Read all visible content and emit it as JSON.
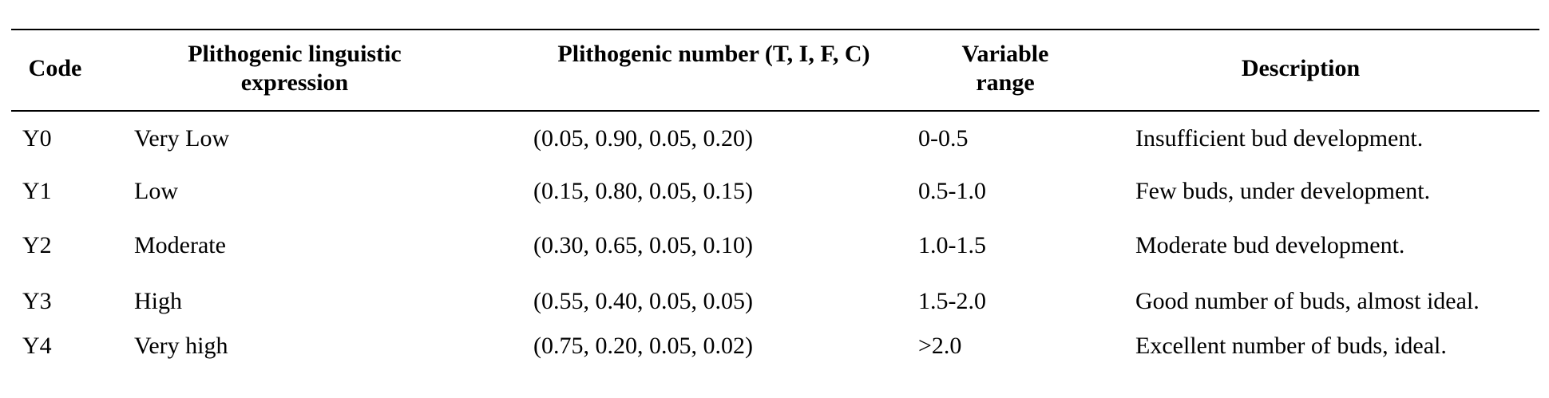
{
  "table": {
    "headers": {
      "code": "Code",
      "expression": "Plithogenic linguistic expression",
      "number": "Plithogenic number (T, I, F, C)",
      "range": "Variable range",
      "description": "Description"
    },
    "rows": [
      {
        "code": "Y0",
        "expression": "Very Low",
        "number": "(0.05, 0.90, 0.05, 0.20)",
        "range": "0-0.5",
        "description": "Insufficient bud development."
      },
      {
        "code": "Y1",
        "expression": "Low",
        "number": "(0.15, 0.80, 0.05, 0.15)",
        "range": "0.5-1.0",
        "description": "Few buds, under development."
      },
      {
        "code": "Y2",
        "expression": "Moderate",
        "number": "(0.30, 0.65, 0.05, 0.10)",
        "range": "1.0-1.5",
        "description": "Moderate bud development."
      },
      {
        "code": "Y3",
        "expression": "High",
        "number": "(0.55, 0.40, 0.05, 0.05)",
        "range": "1.5-2.0",
        "description": "Good number of buds, almost ideal."
      },
      {
        "code": "Y4",
        "expression": "Very high",
        "number": "(0.75, 0.20, 0.05, 0.02)",
        "range": ">2.0",
        "description": "Excellent number of buds, ideal."
      }
    ]
  }
}
